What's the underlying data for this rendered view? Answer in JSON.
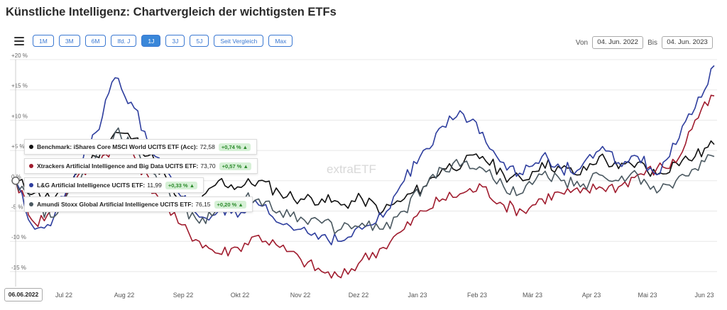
{
  "page": {
    "title": "Künstliche Intelligenz: Chartvergleich der wichtigsten ETFs"
  },
  "toolbar": {
    "menu_icon": "hamburger-icon",
    "ranges": [
      "1M",
      "3M",
      "6M",
      "lfd. J",
      "1J",
      "3J",
      "5J",
      "Seit Vergleich",
      "Max"
    ],
    "active_range": "1J",
    "from_label": "Von",
    "from_date": "04. Jun. 2022",
    "to_label": "Bis",
    "to_date": "04. Jun. 2023"
  },
  "tooltip": {
    "date": "06.06.2022",
    "items": [
      {
        "name": "Benchmark: iShares Core MSCI World UCITS ETF (Acc):",
        "value": "72,58",
        "change": "+0,74 %",
        "color": "#111111"
      },
      {
        "name": "Xtrackers Artificial Intelligence and Big Data UCITS ETF:",
        "value": "73,70",
        "change": "+0,57 %",
        "color": "#a01c2e"
      },
      {
        "name": "L&G Artificial Intelligence UCITS ETF:",
        "value": "11,99",
        "change": "+0,33 %",
        "color": "#2e3e9e"
      },
      {
        "name": "Amundi Stoxx Global Artificial Intelligence UCITS ETF:",
        "value": "76,15",
        "change": "+0,20 %",
        "color": "#4a5860"
      }
    ]
  },
  "watermark": "extraETF",
  "chart_data": {
    "type": "line",
    "x_labels": [
      "Jul 22",
      "Aug 22",
      "Sep 22",
      "Okt 22",
      "Nov 22",
      "Dez 22",
      "Jan 23",
      "Feb 23",
      "Mär 23",
      "Apr 23",
      "Mai 23",
      "Jun 23"
    ],
    "y_ticks": [
      "+20 %",
      "+15 %",
      "+10 %",
      "+5 %",
      "0 %",
      "-5 %",
      "-10 %",
      "-15 %"
    ],
    "ylim": [
      -17,
      20
    ],
    "x": [
      0,
      10,
      20,
      31,
      42,
      52,
      62,
      73,
      85,
      96,
      106,
      116,
      127,
      138,
      149,
      160,
      170,
      181,
      192,
      203,
      213,
      223,
      234,
      244,
      255,
      265,
      275,
      285,
      295,
      305,
      315,
      325,
      335,
      345,
      355,
      365
    ],
    "series": [
      {
        "name": "Benchmark: iShares Core MSCI World UCITS ETF (Acc)",
        "color": "#111111",
        "values": [
          0,
          -2,
          -3,
          1,
          4,
          8,
          7,
          3,
          -3,
          -4,
          0,
          -1,
          0,
          -2,
          -3,
          -3,
          -4,
          -3,
          -5,
          -3,
          -1,
          2,
          3,
          4,
          1,
          0,
          3,
          2,
          1,
          4,
          2,
          3,
          1,
          3,
          4,
          6
        ]
      },
      {
        "name": "Xtrackers Artificial Intelligence and Big Data UCITS ETF",
        "color": "#a01c2e",
        "values": [
          0,
          -7,
          -5,
          0,
          3,
          6,
          4,
          -2,
          -7,
          -10,
          -12,
          -11,
          -9,
          -11,
          -13,
          -15,
          -16,
          -13,
          -11,
          -8,
          -5,
          -3,
          -2,
          -1,
          -4,
          -5,
          -3,
          -2,
          -2,
          -1,
          -1,
          1,
          2,
          3,
          10,
          14
        ]
      },
      {
        "name": "L&G Artificial Intelligence UCITS ETF",
        "color": "#2e3e9e",
        "values": [
          0,
          -8,
          -6,
          1,
          8,
          17,
          12,
          4,
          -2,
          -6,
          -5,
          -6,
          -4,
          -7,
          -8,
          -9,
          -10,
          -8,
          -6,
          0,
          5,
          9,
          11,
          8,
          3,
          1,
          4,
          2,
          2,
          5,
          3,
          4,
          1,
          6,
          12,
          19
        ]
      },
      {
        "name": "Amundi Stoxx Global Artificial Intelligence UCITS ETF",
        "color": "#4a5860",
        "values": [
          0,
          -4,
          -6,
          -1,
          4,
          8,
          6,
          1,
          -4,
          -7,
          -4,
          -3,
          -3,
          -5,
          -6,
          -7,
          -8,
          -7,
          -8,
          -5,
          -1,
          2,
          3,
          2,
          -1,
          -2,
          1,
          0,
          -1,
          1,
          0,
          1,
          -2,
          0,
          2,
          4
        ]
      }
    ]
  }
}
